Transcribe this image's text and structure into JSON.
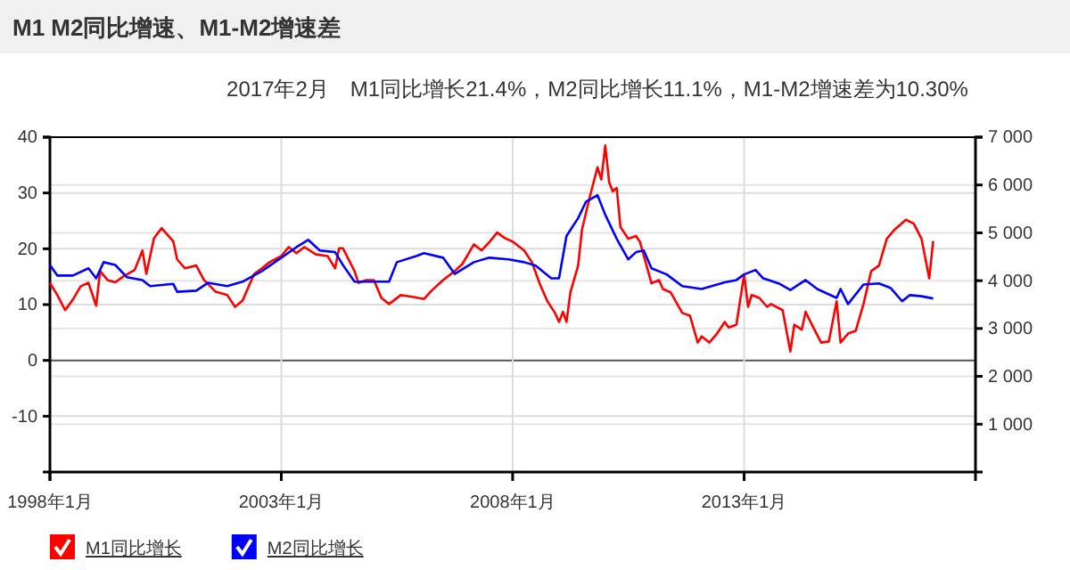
{
  "chart_data": {
    "type": "line",
    "title": "M1 M2同比增速、M1-M2增速差",
    "subtitle": "2017年2月　M1同比增长21.4%，M2同比增长11.1%，M1-M2增速差为10.30%",
    "xlim": [
      "1998-01",
      "2018-01"
    ],
    "xticks": [
      {
        "value": "1998-01",
        "label": "1998年1月"
      },
      {
        "value": "2003-01",
        "label": "2003年1月"
      },
      {
        "value": "2008-01",
        "label": "2008年1月"
      },
      {
        "value": "2013-01",
        "label": "2013年1月"
      }
    ],
    "ylim": [
      -20,
      40
    ],
    "yticks": [
      -10,
      0,
      10,
      20,
      30,
      40
    ],
    "y2lim": [
      0,
      7000
    ],
    "y2ticks": [
      {
        "value": 1000,
        "label": "1 000"
      },
      {
        "value": 2000,
        "label": "2 000"
      },
      {
        "value": 3000,
        "label": "3 000"
      },
      {
        "value": 4000,
        "label": "4 000"
      },
      {
        "value": 5000,
        "label": "5 000"
      },
      {
        "value": 6000,
        "label": "6 000"
      },
      {
        "value": 7000,
        "label": "7 000"
      }
    ],
    "grid": true,
    "legend": "bottom left",
    "marker": "none",
    "line_style": "solid",
    "series": [
      {
        "name": "M1同比增长",
        "color": "#ff0000",
        "x": [
          "1998-01",
          "1998-03",
          "1998-05",
          "1998-07",
          "1998-09",
          "1998-11",
          "1999-01",
          "1999-02",
          "1999-04",
          "1999-06",
          "1999-08",
          "1999-11",
          "2000-01",
          "2000-02",
          "2000-04",
          "2000-06",
          "2000-09",
          "2000-10",
          "2000-12",
          "2001-03",
          "2001-05",
          "2001-08",
          "2001-11",
          "2002-01",
          "2002-03",
          "2002-06",
          "2002-08",
          "2002-10",
          "2003-01",
          "2003-03",
          "2003-05",
          "2003-07",
          "2003-10",
          "2004-01",
          "2004-03",
          "2004-04",
          "2004-05",
          "2004-08",
          "2004-09",
          "2004-11",
          "2005-01",
          "2005-03",
          "2005-05",
          "2005-08",
          "2005-11",
          "2006-02",
          "2006-04",
          "2006-07",
          "2006-10",
          "2006-12",
          "2007-03",
          "2007-05",
          "2007-07",
          "2007-09",
          "2007-11",
          "2008-01",
          "2008-04",
          "2008-06",
          "2008-08",
          "2008-10",
          "2008-12",
          "2009-01",
          "2009-02",
          "2009-03",
          "2009-04",
          "2009-06",
          "2009-07",
          "2009-09",
          "2009-11",
          "2009-12",
          "2010-01",
          "2010-02",
          "2010-03",
          "2010-04",
          "2010-05",
          "2010-07",
          "2010-09",
          "2010-10",
          "2011-01",
          "2011-03",
          "2011-04",
          "2011-06",
          "2011-09",
          "2011-11",
          "2012-01",
          "2012-02",
          "2012-04",
          "2012-06",
          "2012-08",
          "2012-09",
          "2012-11",
          "2013-01",
          "2013-02",
          "2013-03",
          "2013-05",
          "2013-07",
          "2013-08",
          "2013-11",
          "2014-01",
          "2014-02",
          "2014-04",
          "2014-05",
          "2014-07",
          "2014-09",
          "2014-11",
          "2015-01",
          "2015-02",
          "2015-04",
          "2015-06",
          "2015-08",
          "2015-10",
          "2015-12",
          "2016-02",
          "2016-04",
          "2016-07",
          "2016-09",
          "2016-11",
          "2017-01",
          "2017-02"
        ],
        "values": [
          13.9,
          11.7,
          9,
          10.9,
          13.3,
          13.9,
          9.8,
          16,
          14.4,
          14,
          15,
          16.2,
          19.7,
          15.5,
          21.9,
          23.7,
          21.3,
          18.1,
          16.5,
          17,
          14.4,
          12.3,
          11.7,
          9.6,
          10.7,
          15.5,
          16.5,
          17.6,
          18.7,
          20.3,
          19.2,
          20.3,
          19,
          18.7,
          16.5,
          20.1,
          20.1,
          16,
          13.9,
          14.4,
          14.4,
          11.2,
          10.1,
          11.7,
          11.4,
          11,
          12.5,
          14.4,
          16,
          17.3,
          20.8,
          19.7,
          21.2,
          22.9,
          21.9,
          21.3,
          19.7,
          17.6,
          13.8,
          10.6,
          8.5,
          6.9,
          8.7,
          6.9,
          12.2,
          17,
          23.4,
          29.3,
          34.6,
          32.4,
          38.5,
          31.9,
          30.3,
          30.9,
          23.9,
          21.8,
          22.3,
          21.3,
          13.8,
          14.4,
          12.8,
          12.2,
          8.5,
          8,
          3.2,
          4.3,
          3.2,
          4.8,
          6.9,
          5.9,
          6.4,
          15.4,
          9.6,
          11.7,
          11.2,
          9.6,
          10.1,
          9,
          1.6,
          6.4,
          5.5,
          8.7,
          5.9,
          3.2,
          3.4,
          10.6,
          3.2,
          4.8,
          5.3,
          10.1,
          16,
          17,
          21.8,
          23.4,
          25.2,
          24.5,
          21.8,
          14.7,
          21.4
        ]
      },
      {
        "name": "M2同比增长",
        "color": "#0000ff",
        "x": [
          "1998-01",
          "1998-03",
          "1998-07",
          "1998-11",
          "1999-01",
          "1999-03",
          "1999-06",
          "1999-09",
          "2000-01",
          "2000-03",
          "2000-09",
          "2000-10",
          "2001-03",
          "2001-06",
          "2001-11",
          "2002-03",
          "2002-08",
          "2003-01",
          "2003-05",
          "2003-08",
          "2003-11",
          "2004-03",
          "2004-05",
          "2004-08",
          "2004-12",
          "2005-05",
          "2005-07",
          "2005-12",
          "2006-02",
          "2006-07",
          "2006-10",
          "2007-03",
          "2007-07",
          "2007-12",
          "2008-04",
          "2008-07",
          "2008-11",
          "2009-01",
          "2009-03",
          "2009-06",
          "2009-08",
          "2009-11",
          "2010-01",
          "2010-04",
          "2010-07",
          "2010-09",
          "2010-11",
          "2011-01",
          "2011-05",
          "2011-09",
          "2012-02",
          "2012-06",
          "2012-08",
          "2012-11",
          "2013-01",
          "2013-04",
          "2013-06",
          "2013-10",
          "2014-01",
          "2014-05",
          "2014-08",
          "2015-01",
          "2015-02",
          "2015-04",
          "2015-08",
          "2015-12",
          "2016-03",
          "2016-06",
          "2016-08",
          "2016-11",
          "2017-02"
        ],
        "values": [
          17.1,
          15.2,
          15.2,
          16.5,
          14.7,
          17.6,
          17.1,
          14.9,
          14.4,
          13.3,
          13.7,
          12.3,
          12.5,
          13.9,
          13.3,
          14.1,
          16,
          18.4,
          20.3,
          21.6,
          19.7,
          19.4,
          17.1,
          14.1,
          14.1,
          14.1,
          17.6,
          18.7,
          19.2,
          18.4,
          15.5,
          17.6,
          18.4,
          18.1,
          17.6,
          17,
          14.7,
          14.7,
          22.3,
          25.5,
          28.4,
          29.6,
          26.1,
          21.8,
          18.1,
          19.4,
          19.7,
          16.5,
          15.4,
          13.3,
          12.8,
          13.6,
          14,
          14.4,
          15.4,
          16.2,
          14.7,
          13.8,
          12.6,
          14.4,
          12.8,
          11.2,
          12.8,
          10.1,
          13.6,
          13.8,
          13,
          10.6,
          11.7,
          11.5,
          11.1
        ]
      }
    ]
  }
}
